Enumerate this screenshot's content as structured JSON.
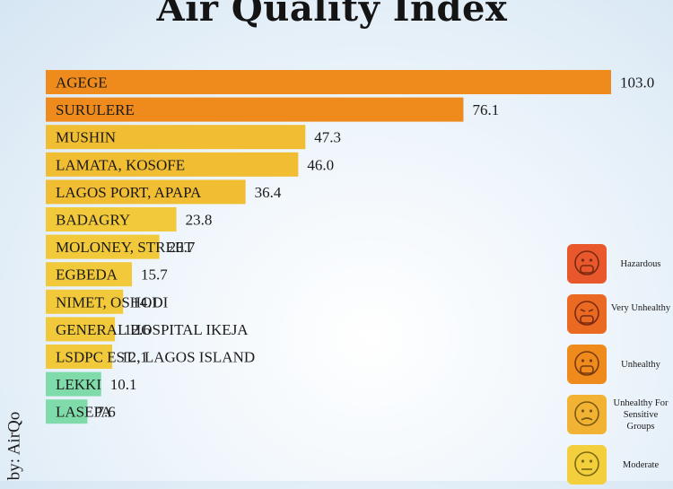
{
  "header": {
    "title": "Air Quality Index"
  },
  "source": "by: AirQo",
  "chart_data": {
    "type": "bar",
    "orientation": "horizontal",
    "title": "Air Quality Index",
    "categories": [
      "AGEGE",
      "SURULERE",
      "MUSHIN",
      "LAMATA, KOSOFE",
      "LAGOS PORT, APAPA",
      "BADAGRY",
      "MOLONEY, STREET",
      "EGBEDA",
      "NIMET, OSHODI",
      "GENERAL HOSPITAL IKEJA",
      "LSDPC EST., LAGOS ISLAND",
      "LEKKI",
      "LASEPA"
    ],
    "values": [
      103.0,
      76.1,
      47.3,
      46.0,
      36.4,
      23.8,
      20.7,
      15.7,
      14.1,
      12.6,
      12.1,
      10.1,
      7.6
    ],
    "value_labels": [
      "103.0",
      "76.1",
      "47.3",
      "46.0",
      "36.4",
      "23.8",
      "20.7",
      "15.7",
      "14.1",
      "12.6",
      "12.1",
      "10.1",
      "7.6"
    ],
    "bar_colors": [
      "#ee8b1c",
      "#ee8b1c",
      "#f1bd33",
      "#f1bd33",
      "#f1bd33",
      "#f1c93a",
      "#f1c93a",
      "#f1c93a",
      "#f1c93a",
      "#f1c93a",
      "#f1c93a",
      "#7fdcaa",
      "#7fdcaa"
    ],
    "xlim": [
      0,
      103.0
    ],
    "grid": false,
    "legend_position": "right"
  },
  "legend": {
    "items": [
      {
        "label": "Hazardous",
        "icon": "hazardous-face-icon",
        "color": "#e8582c"
      },
      {
        "label": "Very Unhealthy",
        "icon": "very-unhealthy-face-icon",
        "color": "#ea6a24"
      },
      {
        "label": "Unhealthy",
        "icon": "unhealthy-face-icon",
        "color": "#ee8b1c"
      },
      {
        "label": "Unhealthy For Sensitive Groups",
        "icon": "sensitive-groups-face-icon",
        "color": "#f2b334"
      },
      {
        "label": "Moderate",
        "icon": "moderate-face-icon",
        "color": "#f3cf3e"
      }
    ]
  }
}
